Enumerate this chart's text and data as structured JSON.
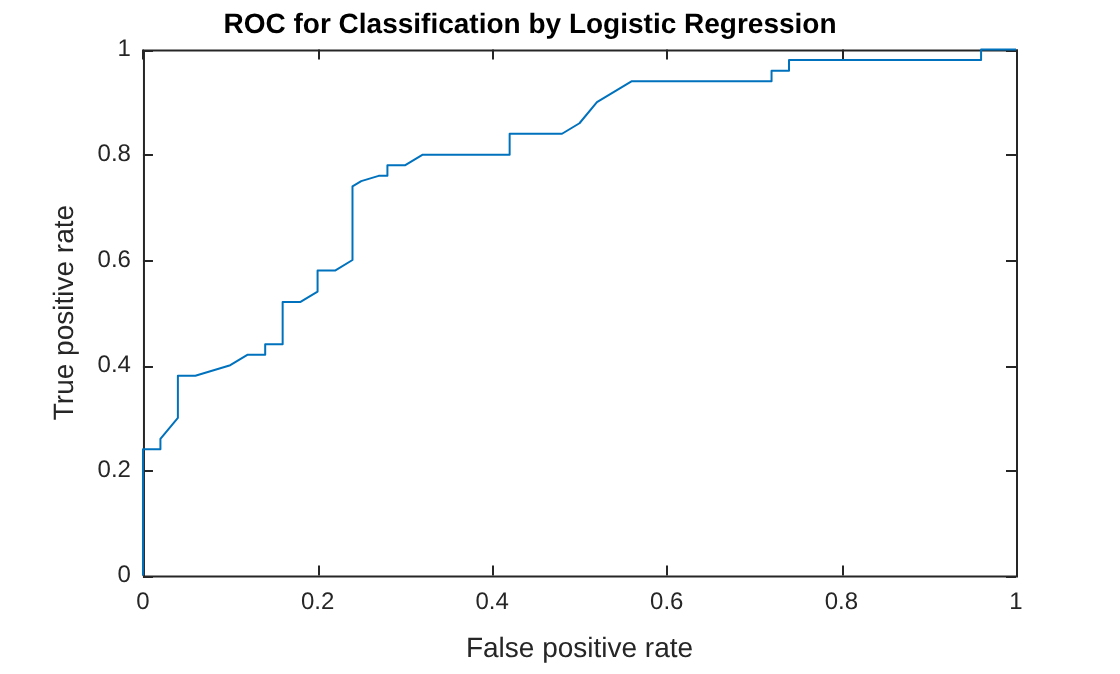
{
  "chart_data": {
    "type": "line",
    "title": "ROC for Classification by Logistic Regression",
    "xlabel": "False positive rate",
    "ylabel": "True positive rate",
    "x": [
      0,
      0,
      0.02,
      0.02,
      0.04,
      0.04,
      0.06,
      0.1,
      0.12,
      0.14,
      0.14,
      0.16,
      0.16,
      0.18,
      0.2,
      0.2,
      0.22,
      0.24,
      0.24,
      0.25,
      0.27,
      0.28,
      0.28,
      0.3,
      0.32,
      0.42,
      0.42,
      0.48,
      0.5,
      0.52,
      0.54,
      0.56,
      0.72,
      0.72,
      0.74,
      0.74,
      0.96,
      0.96,
      1
    ],
    "series": [
      {
        "color": "#0072bd",
        "values": [
          0,
          0.24,
          0.24,
          0.26,
          0.3,
          0.38,
          0.38,
          0.4,
          0.42,
          0.42,
          0.44,
          0.44,
          0.52,
          0.52,
          0.54,
          0.58,
          0.58,
          0.6,
          0.74,
          0.75,
          0.76,
          0.76,
          0.78,
          0.78,
          0.8,
          0.8,
          0.84,
          0.84,
          0.86,
          0.9,
          0.92,
          0.94,
          0.94,
          0.96,
          0.96,
          0.98,
          0.98,
          1,
          1
        ]
      }
    ],
    "xlim": [
      0,
      1
    ],
    "xticks": [
      0,
      0.2,
      0.4,
      0.6,
      0.8,
      1
    ],
    "ylim": [
      0,
      1
    ],
    "yticks": [
      0,
      0.2,
      0.4,
      0.6,
      0.8,
      1
    ],
    "grid": false,
    "legend": false,
    "marker": "none",
    "line_style": "solid"
  }
}
